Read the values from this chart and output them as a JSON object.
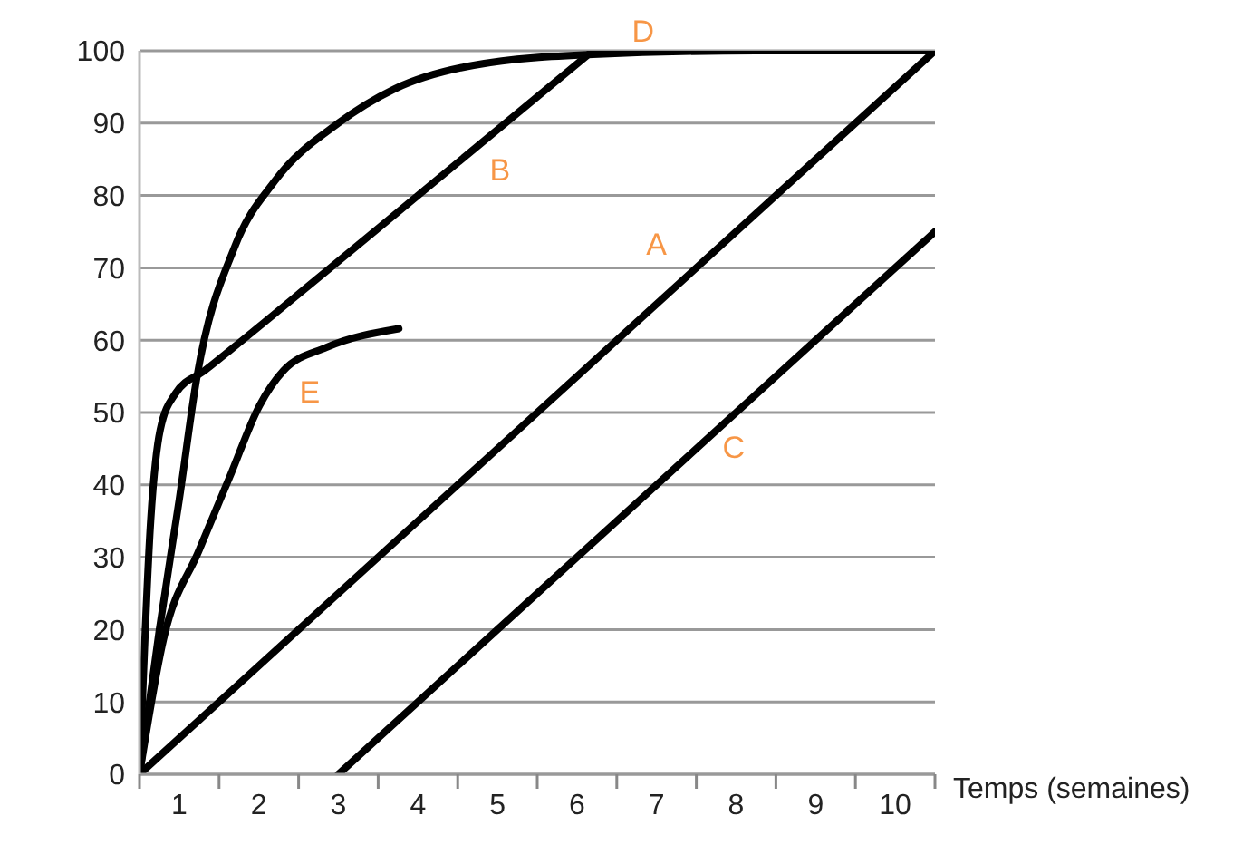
{
  "chart_data": {
    "type": "line",
    "xlabel": "Temps (semaines)",
    "xlim": [
      0,
      10
    ],
    "xticks": [
      {
        "value": 0,
        "label": null
      },
      {
        "value": 0.5,
        "label": "1"
      },
      {
        "value": 1,
        "label": null
      },
      {
        "value": 1.5,
        "label": "2"
      },
      {
        "value": 2,
        "label": null
      },
      {
        "value": 2.5,
        "label": "3"
      },
      {
        "value": 3,
        "label": null
      },
      {
        "value": 3.5,
        "label": "4"
      },
      {
        "value": 4,
        "label": null
      },
      {
        "value": 4.5,
        "label": "5"
      },
      {
        "value": 5,
        "label": null
      },
      {
        "value": 5.5,
        "label": "6"
      },
      {
        "value": 6,
        "label": null
      },
      {
        "value": 6.5,
        "label": "7"
      },
      {
        "value": 7,
        "label": null
      },
      {
        "value": 7.5,
        "label": "8"
      },
      {
        "value": 8,
        "label": null
      },
      {
        "value": 8.5,
        "label": "9"
      },
      {
        "value": 9,
        "label": null
      },
      {
        "value": 9.5,
        "label": "10"
      },
      {
        "value": 10,
        "label": null
      }
    ],
    "ylim": [
      0,
      100
    ],
    "yticks": [
      0,
      10,
      20,
      30,
      40,
      50,
      60,
      70,
      80,
      90,
      100
    ],
    "grid": "y",
    "marker": "none",
    "line_style": "solid",
    "series": [
      {
        "color": "#000000",
        "x": [
          0,
          10
        ],
        "values": [
          0,
          100
        ]
      },
      {
        "color": "#000000",
        "x": [
          0,
          0.14,
          0.26,
          0.45,
          0.82,
          2.4,
          5.7
        ],
        "values": [
          0,
          35,
          47.6,
          52.6,
          55.8,
          70,
          100
        ]
      },
      {
        "color": "#000000",
        "x": [
          2.5,
          10
        ],
        "values": [
          0,
          75
        ]
      },
      {
        "color": "#000000",
        "x": [
          0,
          0.25,
          0.5,
          0.72,
          1.2,
          1.7,
          2.5,
          3.2,
          4.2,
          5.7,
          7.75,
          10
        ],
        "values": [
          0,
          20,
          38,
          54.8,
          73,
          82,
          90,
          94.7,
          98,
          99.5,
          100,
          100
        ]
      },
      {
        "color": "#000000",
        "x": [
          0,
          0.3,
          0.75,
          1.13,
          1.51,
          1.81,
          2.35,
          3.26
        ],
        "values": [
          0,
          18.6,
          31,
          41,
          51,
          55.8,
          59,
          61.6
        ]
      }
    ],
    "annotations": [
      {
        "text": "A",
        "x": 6.5,
        "y": 65
      },
      {
        "text": "B",
        "x": 4.53,
        "y": 89.3
      },
      {
        "text": "C",
        "x": 7.47,
        "y": 49.7
      },
      {
        "text": "D",
        "x": 6.33,
        "y": 99.8
      },
      {
        "text": "E",
        "x": 2.14,
        "y": 57.7
      }
    ]
  }
}
